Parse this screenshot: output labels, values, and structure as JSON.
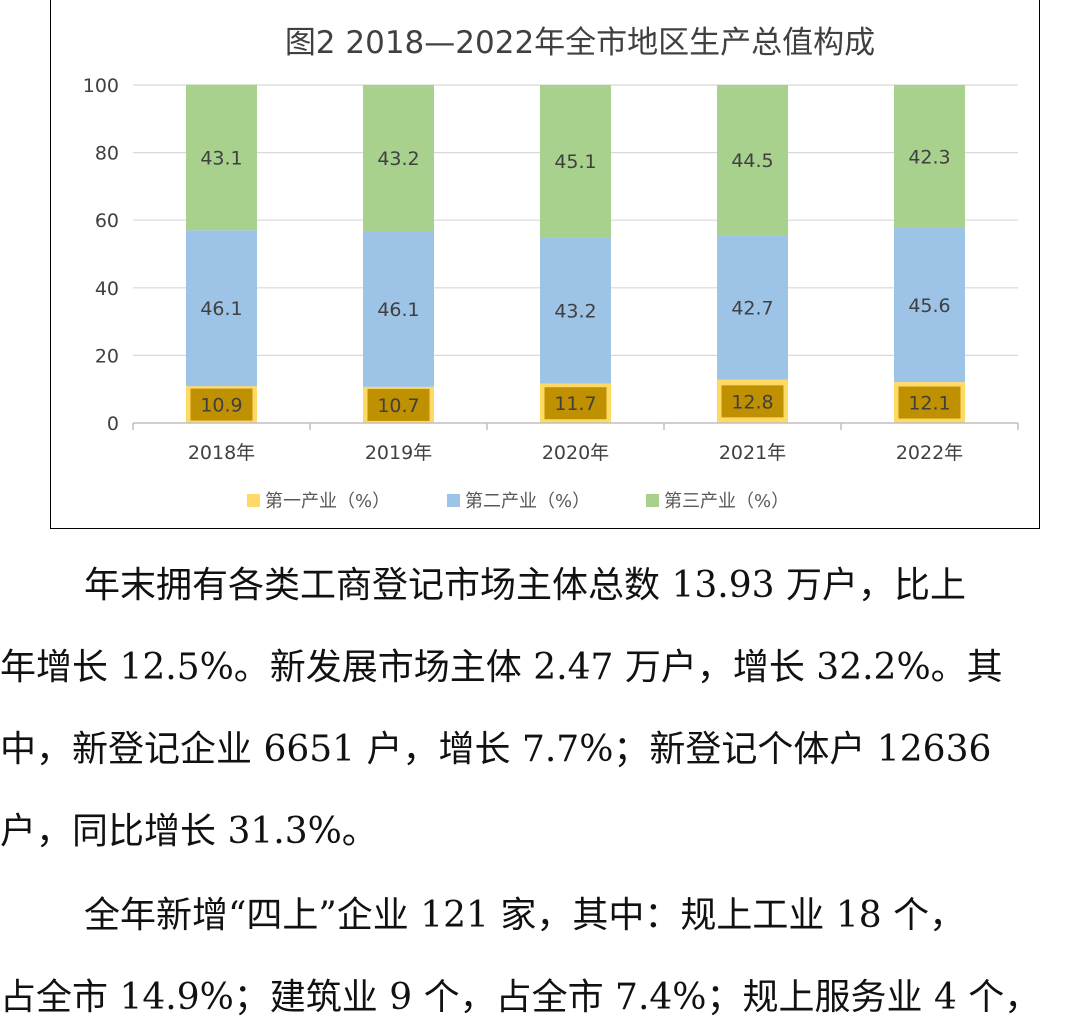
{
  "chart_data": {
    "type": "bar",
    "stacked": true,
    "title": "图2 2018—2022年全市地区生产总值构成",
    "categories": [
      "2018年",
      "2019年",
      "2020年",
      "2021年",
      "2022年"
    ],
    "series": [
      {
        "name": "第一产业（%）",
        "values": [
          10.9,
          10.7,
          11.7,
          12.8,
          12.1
        ],
        "color": "#FFD966",
        "label_bg": "#BF9000"
      },
      {
        "name": "第二产业（%）",
        "values": [
          46.1,
          46.1,
          43.2,
          42.7,
          45.6
        ],
        "color": "#9DC3E6"
      },
      {
        "name": "第三产业（%）",
        "values": [
          43.1,
          43.2,
          45.1,
          44.5,
          42.3
        ],
        "color": "#A9D18E"
      }
    ],
    "ylim": [
      0,
      100
    ],
    "yticks": [
      0,
      20,
      40,
      60,
      80,
      100
    ],
    "grid": true,
    "legend_position": "bottom"
  },
  "text": {
    "p1": [
      "年末拥有各类工商登记市场主体总数 13.93 万户，比上",
      "年增长 12.5%。新发展市场主体 2.47 万户，增长 32.2%。其",
      "中，新登记企业 6651 户，增长 7.7%；新登记个体户 12636",
      "户，同比增长 31.3%。"
    ],
    "p2": [
      "全年新增“四上”企业 121 家，其中：规上工业 18 个，",
      "占全市 14.9%；建筑业 9 个，占全市 7.4%；规上服务业 4 个，"
    ]
  }
}
